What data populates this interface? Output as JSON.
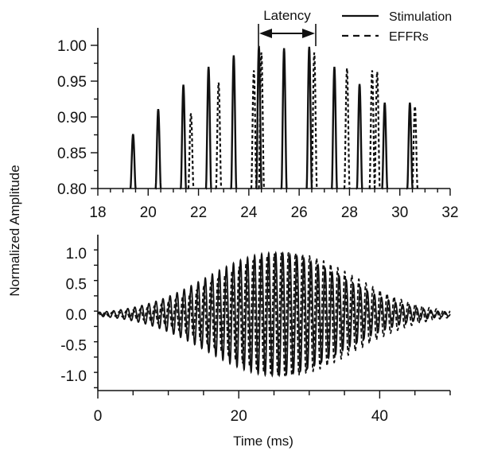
{
  "colors": {
    "ink": "#111111",
    "background": "#ffffff"
  },
  "figure": {
    "ylabel": "Normalized Amplitude",
    "legend": [
      {
        "label": "Stimulation",
        "style": "solid"
      },
      {
        "label": "EFFRs",
        "style": "dashed"
      }
    ],
    "annotation": "Latency"
  },
  "chart_data": [
    {
      "type": "line",
      "title": "",
      "xlabel": "",
      "ylabel": "Normalized Amplitude",
      "xlim": [
        18,
        32
      ],
      "ylim": [
        0.8,
        1.0
      ],
      "xticks": [
        "18",
        "20",
        "22",
        "24",
        "26",
        "28",
        "30",
        "32"
      ],
      "yticks": [
        "0.80",
        "0.85",
        "0.90",
        "0.95",
        "1.00"
      ],
      "legend_position": "top-right",
      "grid": false,
      "annotation": {
        "text": "Latency",
        "x_start": 24.4,
        "x_end": 26.6
      },
      "series": [
        {
          "name": "Stimulation",
          "style": "solid",
          "peaks": [
            {
              "x": 19.4,
              "y": 0.876
            },
            {
              "x": 20.4,
              "y": 0.911
            },
            {
              "x": 21.4,
              "y": 0.945
            },
            {
              "x": 22.4,
              "y": 0.97
            },
            {
              "x": 23.4,
              "y": 0.986
            },
            {
              "x": 24.4,
              "y": 0.999
            },
            {
              "x": 25.4,
              "y": 0.996
            },
            {
              "x": 26.4,
              "y": 0.998
            },
            {
              "x": 27.4,
              "y": 0.97
            },
            {
              "x": 28.4,
              "y": 0.946
            },
            {
              "x": 29.4,
              "y": 0.92
            },
            {
              "x": 30.4,
              "y": 0.92
            }
          ]
        },
        {
          "name": "EFFRs",
          "style": "dashed",
          "peaks": [
            {
              "x": 21.7,
              "y": 0.905
            },
            {
              "x": 22.8,
              "y": 0.948
            },
            {
              "x": 24.2,
              "y": 0.965
            },
            {
              "x": 24.5,
              "y": 0.99
            },
            {
              "x": 26.6,
              "y": 0.99
            },
            {
              "x": 27.9,
              "y": 0.968
            },
            {
              "x": 28.9,
              "y": 0.965
            },
            {
              "x": 29.1,
              "y": 0.963
            },
            {
              "x": 30.6,
              "y": 0.915
            }
          ]
        }
      ]
    },
    {
      "type": "line",
      "title": "",
      "xlabel": "Time (ms)",
      "ylabel": "Normalized Amplitude",
      "xlim": [
        0,
        50
      ],
      "ylim": [
        -1.2,
        1.2
      ],
      "xticks": [
        "0",
        "20",
        "40"
      ],
      "yticks": [
        "-1.0",
        "-0.5",
        "0.0",
        "0.5",
        "1.0"
      ],
      "grid": false,
      "series": [
        {
          "name": "Stimulation",
          "style": "solid",
          "carrier_frequency_khz": 1,
          "envelope_peak_ms": 25,
          "envelope_peak_amplitude": 1.0
        },
        {
          "name": "EFFRs",
          "style": "dashed",
          "carrier_frequency_khz": 1,
          "envelope_peak_ms": 27,
          "envelope_peak_amplitude": 1.0
        }
      ]
    }
  ]
}
